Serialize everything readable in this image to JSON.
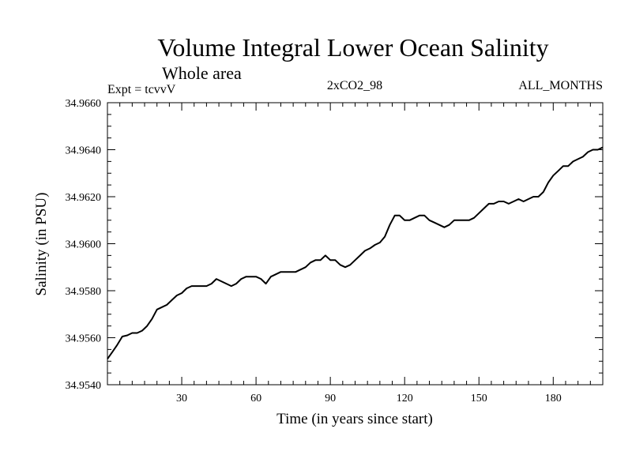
{
  "chart_data": {
    "type": "line",
    "title": "Volume Integral Lower Ocean Salinity",
    "subtitle": "Whole area",
    "annotations": {
      "left": "Expt = tcvvV",
      "center": "2xCO2_98",
      "right": "ALL_MONTHS"
    },
    "xlabel": "Time (in years since start)",
    "ylabel": "Salinity (in PSU)",
    "xlim": [
      0,
      200
    ],
    "ylim": [
      34.954,
      34.966
    ],
    "xticks": [
      30,
      60,
      90,
      120,
      150,
      180
    ],
    "xtick_labels": [
      "30",
      "60",
      "90",
      "120",
      "150",
      "180"
    ],
    "yticks": [
      34.954,
      34.956,
      34.958,
      34.96,
      34.962,
      34.964,
      34.966
    ],
    "ytick_labels": [
      "34.9540",
      "34.9560",
      "34.9580",
      "34.9600",
      "34.9620",
      "34.9640",
      "34.9660"
    ],
    "grid": false,
    "series": [
      {
        "x": [
          0,
          2,
          4,
          6,
          8,
          10,
          12,
          14,
          16,
          18,
          20,
          22,
          24,
          26,
          28,
          30,
          32,
          34,
          36,
          38,
          40,
          42,
          44,
          46,
          48,
          50,
          52,
          54,
          56,
          58,
          60,
          62,
          64,
          66,
          68,
          70,
          72,
          74,
          76,
          78,
          80,
          82,
          84,
          86,
          88,
          90,
          92,
          94,
          96,
          98,
          100,
          102,
          104,
          106,
          108,
          110,
          112,
          114,
          116,
          118,
          120,
          122,
          124,
          126,
          128,
          130,
          132,
          134,
          136,
          138,
          140,
          142,
          144,
          146,
          148,
          150,
          152,
          154,
          156,
          158,
          160,
          162,
          164,
          166,
          168,
          170,
          172,
          174,
          176,
          178,
          180,
          182,
          184,
          186,
          188,
          190,
          192,
          194,
          196,
          198,
          200
        ],
        "y": [
          34.9551,
          34.9554,
          34.9557,
          34.95605,
          34.9561,
          34.9562,
          34.9562,
          34.9563,
          34.9565,
          34.9568,
          34.9572,
          34.9573,
          34.9574,
          34.9576,
          34.9578,
          34.9579,
          34.9581,
          34.9582,
          34.9582,
          34.9582,
          34.9582,
          34.9583,
          34.9585,
          34.9584,
          34.9583,
          34.9582,
          34.9583,
          34.9585,
          34.9586,
          34.9586,
          34.9586,
          34.9585,
          34.9583,
          34.9586,
          34.9587,
          34.9588,
          34.9588,
          34.9588,
          34.9588,
          34.9589,
          34.959,
          34.9592,
          34.9593,
          34.9593,
          34.9595,
          34.9593,
          34.9593,
          34.9591,
          34.959,
          34.9591,
          34.9593,
          34.9595,
          34.9597,
          34.9598,
          34.95995,
          34.96005,
          34.9603,
          34.9608,
          34.9612,
          34.9612,
          34.961,
          34.961,
          34.9611,
          34.9612,
          34.9612,
          34.961,
          34.9609,
          34.9608,
          34.9607,
          34.9608,
          34.961,
          34.961,
          34.961,
          34.961,
          34.9611,
          34.9613,
          34.9615,
          34.9617,
          34.9617,
          34.9618,
          34.9618,
          34.9617,
          34.9618,
          34.9619,
          34.9618,
          34.9619,
          34.962,
          34.962,
          34.9622,
          34.9626,
          34.9629,
          34.9631,
          34.9633,
          34.9633,
          34.9635,
          34.9636,
          34.9637,
          34.9639,
          34.964,
          34.964,
          34.9641
        ]
      }
    ]
  }
}
